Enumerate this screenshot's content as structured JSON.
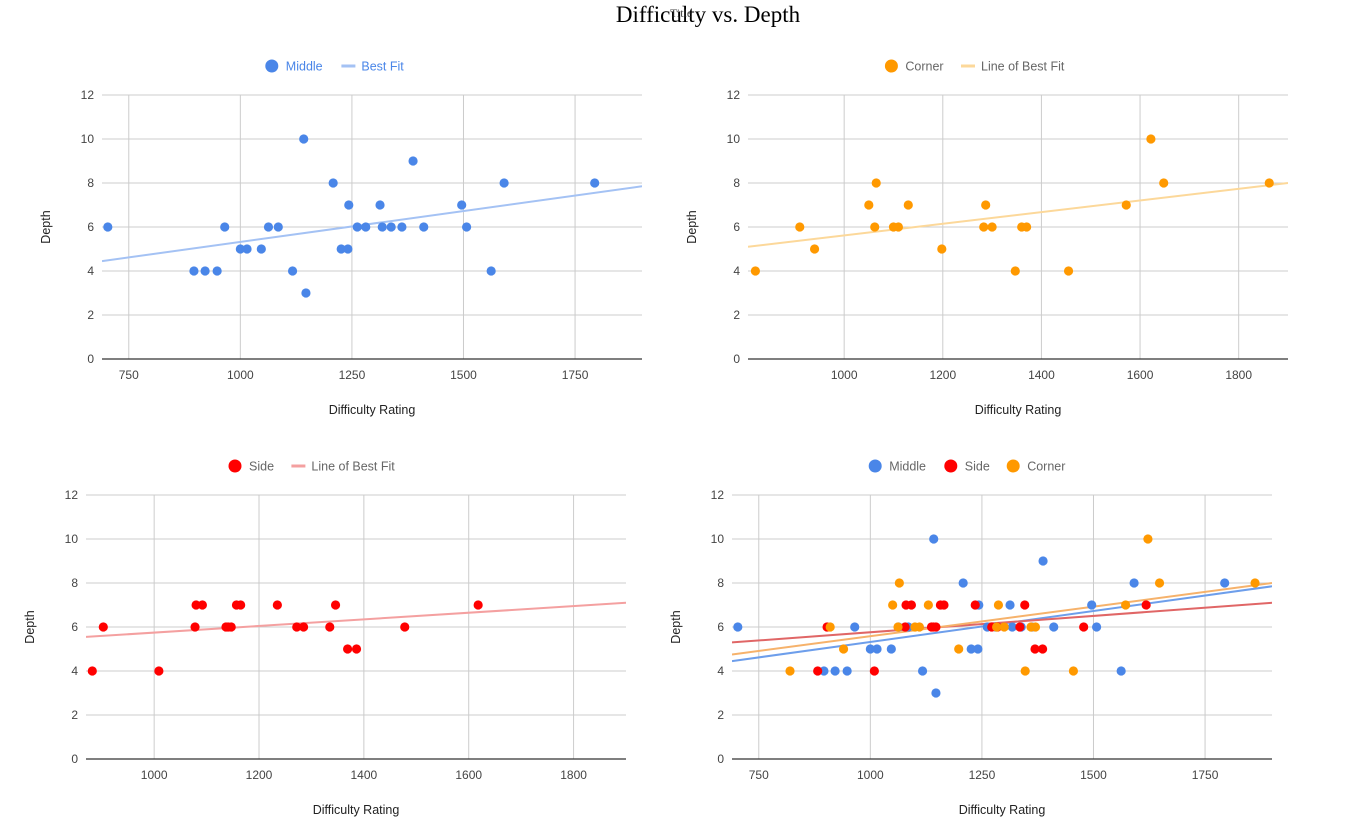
{
  "page": {
    "title": "Difficulty vs. Depth",
    "title_overlay": "Title"
  },
  "colors": {
    "middle": "#4a86e8",
    "middle_fit": "#a4c2f4",
    "corner": "#ff9900",
    "corner_fit": "#fcd89a",
    "side": "#ff0000",
    "side_fit": "#f4a0a0",
    "combined_middle_fit": "#6d9eeb",
    "combined_side_fit": "#e06666",
    "combined_corner_fit": "#f6b26b",
    "grid": "#cccccc",
    "axis": "#333333",
    "text": "#444444"
  },
  "chart_data": [
    {
      "type": "scatter",
      "xlabel": "Difficulty Rating",
      "ylabel": "Depth",
      "xlim": [
        690,
        1900
      ],
      "ylim": [
        0,
        12
      ],
      "xticks": [
        750,
        1000,
        1250,
        1500,
        1750
      ],
      "yticks": [
        0,
        2,
        4,
        6,
        8,
        10,
        12
      ],
      "grid": true,
      "legend_position": "top",
      "legend": [
        {
          "label": "Middle",
          "kind": "dot",
          "color": "#4a86e8",
          "text_color": "#4a86e8"
        },
        {
          "label": "Best Fit",
          "kind": "line",
          "color": "#a4c2f4",
          "text_color": "#4a86e8"
        }
      ],
      "series": [
        {
          "name": "Middle",
          "color": "#4a86e8",
          "x": [
            703,
            896,
            921,
            948,
            965,
            1000,
            1015,
            1047,
            1063,
            1085,
            1117,
            1142,
            1147,
            1208,
            1226,
            1241,
            1243,
            1262,
            1281,
            1313,
            1318,
            1338,
            1362,
            1387,
            1411,
            1496,
            1507,
            1562,
            1591,
            1794
          ],
          "y": [
            6,
            4,
            4,
            4,
            6,
            5,
            5,
            5,
            6,
            6,
            4,
            10,
            3,
            8,
            5,
            5,
            7,
            6,
            6,
            7,
            6,
            6,
            6,
            9,
            6,
            7,
            6,
            4,
            8,
            8
          ]
        }
      ],
      "fits": [
        {
          "name": "Best Fit",
          "color": "#a4c2f4",
          "x": [
            690,
            1900
          ],
          "y": [
            4.45,
            7.85
          ]
        }
      ]
    },
    {
      "type": "scatter",
      "xlabel": "Difficulty Rating",
      "ylabel": "Depth",
      "xlim": [
        805,
        1900
      ],
      "ylim": [
        0,
        12
      ],
      "xticks": [
        1000,
        1200,
        1400,
        1600,
        1800
      ],
      "yticks": [
        0,
        2,
        4,
        6,
        8,
        10,
        12
      ],
      "grid": true,
      "legend_position": "top",
      "legend": [
        {
          "label": "Corner",
          "kind": "dot",
          "color": "#ff9900",
          "text_color": "#666666"
        },
        {
          "label": "Line of Best Fit",
          "kind": "line",
          "color": "#fcd89a",
          "text_color": "#666666"
        }
      ],
      "series": [
        {
          "name": "Corner",
          "color": "#ff9900",
          "x": [
            820,
            910,
            940,
            1050,
            1062,
            1065,
            1100,
            1110,
            1130,
            1198,
            1283,
            1287,
            1300,
            1347,
            1360,
            1370,
            1455,
            1572,
            1622,
            1648,
            1862
          ],
          "y": [
            4,
            6,
            5,
            7,
            6,
            8,
            6,
            6,
            7,
            5,
            6,
            7,
            6,
            4,
            6,
            6,
            4,
            7,
            10,
            8,
            8
          ]
        }
      ],
      "fits": [
        {
          "name": "Line of Best Fit",
          "color": "#fcd89a",
          "x": [
            805,
            1900
          ],
          "y": [
            5.1,
            8.0
          ]
        }
      ]
    },
    {
      "type": "scatter",
      "xlabel": "Difficulty Rating",
      "ylabel": "Depth",
      "xlim": [
        870,
        1900
      ],
      "ylim": [
        0,
        12
      ],
      "xticks": [
        1000,
        1200,
        1400,
        1600,
        1800
      ],
      "yticks": [
        0,
        2,
        4,
        6,
        8,
        10,
        12
      ],
      "grid": true,
      "legend_position": "top",
      "legend": [
        {
          "label": "Side",
          "kind": "dot",
          "color": "#ff0000",
          "text_color": "#666666"
        },
        {
          "label": "Line of Best Fit",
          "kind": "line",
          "color": "#f4a0a0",
          "text_color": "#666666"
        }
      ],
      "series": [
        {
          "name": "Side",
          "color": "#ff0000",
          "x": [
            882,
            903,
            1009,
            1078,
            1080,
            1092,
            1137,
            1141,
            1147,
            1157,
            1165,
            1235,
            1272,
            1285,
            1335,
            1346,
            1369,
            1386,
            1478,
            1618
          ],
          "y": [
            4,
            6,
            4,
            6,
            7,
            7,
            6,
            6,
            6,
            7,
            7,
            7,
            6,
            6,
            6,
            7,
            5,
            5,
            6,
            7
          ]
        }
      ],
      "fits": [
        {
          "name": "Line of Best Fit",
          "color": "#f4a0a0",
          "x": [
            870,
            1900
          ],
          "y": [
            5.55,
            7.1
          ]
        }
      ]
    },
    {
      "type": "scatter",
      "xlabel": "Difficulty Rating",
      "ylabel": "Depth",
      "xlim": [
        690,
        1900
      ],
      "ylim": [
        0,
        12
      ],
      "xticks": [
        750,
        1000,
        1250,
        1500,
        1750
      ],
      "yticks": [
        0,
        2,
        4,
        6,
        8,
        10,
        12
      ],
      "grid": true,
      "legend_position": "top",
      "legend": [
        {
          "label": "Middle",
          "kind": "dot",
          "color": "#4a86e8",
          "text_color": "#666666"
        },
        {
          "label": "Side",
          "kind": "dot",
          "color": "#ff0000",
          "text_color": "#666666"
        },
        {
          "label": "Corner",
          "kind": "dot",
          "color": "#ff9900",
          "text_color": "#666666"
        }
      ],
      "series": [
        {
          "name": "Middle",
          "color": "#4a86e8",
          "x": [
            703,
            896,
            921,
            948,
            965,
            1000,
            1015,
            1047,
            1063,
            1085,
            1117,
            1142,
            1147,
            1208,
            1226,
            1241,
            1243,
            1262,
            1281,
            1313,
            1318,
            1338,
            1362,
            1387,
            1411,
            1496,
            1507,
            1562,
            1591,
            1794
          ],
          "y": [
            6,
            4,
            4,
            4,
            6,
            5,
            5,
            5,
            6,
            6,
            4,
            10,
            3,
            8,
            5,
            5,
            7,
            6,
            6,
            7,
            6,
            6,
            6,
            9,
            6,
            7,
            6,
            4,
            8,
            8
          ]
        },
        {
          "name": "Side",
          "color": "#ff0000",
          "x": [
            882,
            903,
            1009,
            1078,
            1080,
            1092,
            1137,
            1141,
            1147,
            1157,
            1165,
            1235,
            1272,
            1285,
            1335,
            1346,
            1369,
            1386,
            1478,
            1618
          ],
          "y": [
            4,
            6,
            4,
            6,
            7,
            7,
            6,
            6,
            6,
            7,
            7,
            7,
            6,
            6,
            6,
            7,
            5,
            5,
            6,
            7
          ]
        },
        {
          "name": "Corner",
          "color": "#ff9900",
          "x": [
            820,
            910,
            940,
            1050,
            1062,
            1065,
            1100,
            1110,
            1130,
            1198,
            1283,
            1287,
            1300,
            1347,
            1360,
            1370,
            1455,
            1572,
            1622,
            1648,
            1862
          ],
          "y": [
            4,
            6,
            5,
            7,
            6,
            8,
            6,
            6,
            7,
            5,
            6,
            7,
            6,
            4,
            6,
            6,
            4,
            7,
            10,
            8,
            8
          ]
        }
      ],
      "fits": [
        {
          "name": "Middle",
          "color": "#6d9eeb",
          "x": [
            690,
            1900
          ],
          "y": [
            4.45,
            7.85
          ]
        },
        {
          "name": "Side",
          "color": "#e06666",
          "x": [
            690,
            1900
          ],
          "y": [
            5.3,
            7.1
          ]
        },
        {
          "name": "Corner",
          "color": "#f6b26b",
          "x": [
            690,
            1900
          ],
          "y": [
            4.75,
            8.0
          ]
        }
      ]
    }
  ]
}
